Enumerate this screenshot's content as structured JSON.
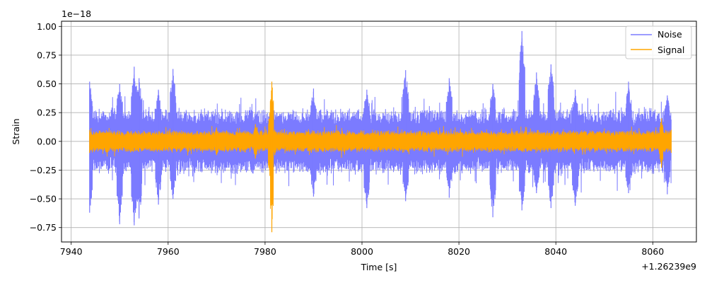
{
  "chart_data": {
    "type": "line",
    "title": "",
    "xlabel": "Time [s]",
    "ylabel": "Strain",
    "x_offset_label": "+1.26239e9",
    "y_scale_label": "1e−18",
    "xlim": [
      7938,
      8069
    ],
    "ylim": [
      -0.875,
      1.045
    ],
    "x_ticks": [
      7940,
      7960,
      7980,
      8000,
      8020,
      8040,
      8060
    ],
    "x_tick_labels": [
      "7940",
      "7960",
      "7980",
      "8000",
      "8020",
      "8040",
      "8060"
    ],
    "y_ticks": [
      -0.75,
      -0.5,
      -0.25,
      0.0,
      0.25,
      0.5,
      0.75,
      1.0
    ],
    "y_tick_labels": [
      "−0.75",
      "−0.50",
      "−0.25",
      "0.00",
      "0.25",
      "0.50",
      "0.75",
      "1.00"
    ],
    "grid": true,
    "legend_position": "top-right",
    "x_range": [
      7943.8,
      8063.8
    ],
    "series": [
      {
        "name": "Noise",
        "color": "#7b7bff",
        "typical_envelope": 0.3,
        "peaks": [
          {
            "x": 7943.8,
            "min": -0.62,
            "max": 0.52
          },
          {
            "x": 7950.0,
            "min": -0.72,
            "max": 0.5
          },
          {
            "x": 7953.0,
            "min": -0.73,
            "max": 0.65
          },
          {
            "x": 7954.0,
            "min": -0.67,
            "max": 0.55
          },
          {
            "x": 7958.0,
            "min": -0.55,
            "max": 0.45
          },
          {
            "x": 7961.0,
            "min": -0.5,
            "max": 0.63
          },
          {
            "x": 7990.0,
            "min": -0.48,
            "max": 0.46
          },
          {
            "x": 8001.0,
            "min": -0.58,
            "max": 0.45
          },
          {
            "x": 8009.0,
            "min": -0.52,
            "max": 0.62
          },
          {
            "x": 8018.0,
            "min": -0.49,
            "max": 0.55
          },
          {
            "x": 8027.0,
            "min": -0.66,
            "max": 0.5
          },
          {
            "x": 8033.0,
            "min": -0.6,
            "max": 0.96
          },
          {
            "x": 8036.0,
            "min": -0.45,
            "max": 0.6
          },
          {
            "x": 8039.0,
            "min": -0.58,
            "max": 0.67
          },
          {
            "x": 8044.0,
            "min": -0.56,
            "max": 0.45
          },
          {
            "x": 8055.0,
            "min": -0.45,
            "max": 0.52
          },
          {
            "x": 8063.0,
            "min": -0.46,
            "max": 0.4
          }
        ]
      },
      {
        "name": "Signal",
        "color": "#ffa500",
        "typical_envelope": 0.1,
        "peaks": [
          {
            "x": 7943.8,
            "min": -0.1,
            "max": 0.1
          },
          {
            "x": 7970.0,
            "min": -0.12,
            "max": 0.12
          },
          {
            "x": 7978.0,
            "min": -0.15,
            "max": 0.15
          },
          {
            "x": 7981.0,
            "min": -0.3,
            "max": 0.25
          },
          {
            "x": 7981.4,
            "min": -0.79,
            "max": 0.52
          },
          {
            "x": 7982.0,
            "min": -0.12,
            "max": 0.1
          },
          {
            "x": 8020.0,
            "min": -0.07,
            "max": 0.07
          },
          {
            "x": 8060.0,
            "min": -0.08,
            "max": 0.08
          },
          {
            "x": 8061.8,
            "min": -0.23,
            "max": 0.2
          },
          {
            "x": 8063.8,
            "min": -0.1,
            "max": 0.1
          }
        ]
      }
    ]
  }
}
